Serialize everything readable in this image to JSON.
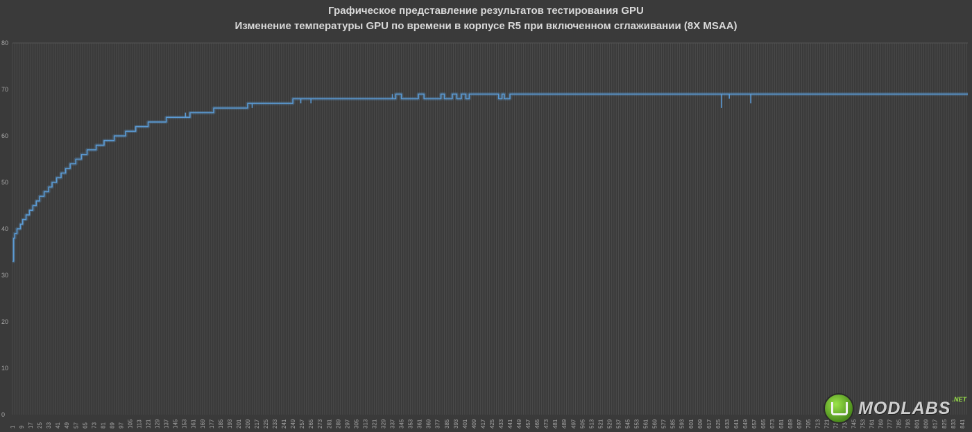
{
  "title": {
    "line1": "Графическое представление результатов тестирования GPU",
    "line2": "Изменение температуры GPU по времени  в корпусе R5 при включенном сглаживании (8X MSAA)"
  },
  "logo": {
    "text": "MODLABS",
    "sup": ".NET"
  },
  "chart_data": {
    "type": "line",
    "title": "Графическое представление результатов тестирования GPU / Изменение температуры GPU по времени  в корпусе R5 при включенном сглаживании (8X MSAA)",
    "xlabel": "",
    "ylabel": "",
    "xlim": [
      1,
      846
    ],
    "ylim": [
      0,
      80
    ],
    "y_ticks": [
      0,
      10,
      20,
      30,
      40,
      50,
      60,
      70,
      80
    ],
    "x_tick_start": 1,
    "x_tick_step": 8,
    "x_tick_last": 841,
    "grid": "vertical",
    "line_color": "#5b9bd5",
    "background": "#3a3a3a",
    "series": [
      {
        "name": "",
        "steps": [
          [
            1,
            33
          ],
          [
            2,
            38
          ],
          [
            3,
            39
          ],
          [
            5,
            40
          ],
          [
            8,
            41
          ],
          [
            10,
            42
          ],
          [
            13,
            43
          ],
          [
            16,
            44
          ],
          [
            19,
            45
          ],
          [
            22,
            46
          ],
          [
            25,
            47
          ],
          [
            29,
            48
          ],
          [
            33,
            49
          ],
          [
            36,
            50
          ],
          [
            40,
            51
          ],
          [
            44,
            52
          ],
          [
            48,
            53
          ],
          [
            52,
            54
          ],
          [
            57,
            55
          ],
          [
            62,
            56
          ],
          [
            67,
            57
          ],
          [
            75,
            58
          ],
          [
            82,
            59
          ],
          [
            91,
            60
          ],
          [
            101,
            61
          ],
          [
            110,
            62
          ],
          [
            121,
            63
          ],
          [
            137,
            64
          ],
          [
            158,
            65
          ],
          [
            179,
            66
          ],
          [
            209,
            67
          ],
          [
            249,
            68
          ],
          [
            340,
            69
          ],
          [
            345,
            68
          ],
          [
            360,
            69
          ],
          [
            365,
            68
          ],
          [
            380,
            69
          ],
          [
            383,
            68
          ],
          [
            390,
            69
          ],
          [
            394,
            68
          ],
          [
            398,
            69
          ],
          [
            402,
            68
          ],
          [
            405,
            69
          ],
          [
            412,
            69
          ],
          [
            431,
            68
          ],
          [
            434,
            69
          ],
          [
            436,
            68
          ],
          [
            441,
            69
          ],
          [
            846,
            69
          ]
        ],
        "dips": [
          [
            154,
            65
          ],
          [
            165,
            65
          ],
          [
            213,
            66
          ],
          [
            256,
            67
          ],
          [
            265,
            67
          ],
          [
            337,
            69
          ],
          [
            439,
            68
          ],
          [
            628,
            66
          ],
          [
            635,
            68
          ],
          [
            654,
            67
          ]
        ]
      }
    ]
  }
}
